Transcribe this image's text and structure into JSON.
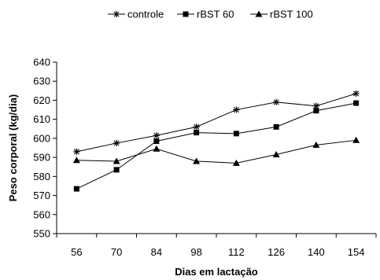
{
  "chart_data": {
    "type": "line",
    "title": "",
    "xlabel": "Dias em lactação",
    "ylabel": "Peso corporal (kg/dia)",
    "x": [
      56,
      70,
      84,
      98,
      112,
      126,
      140,
      154
    ],
    "ylim": [
      550,
      640
    ],
    "ytick_step": 10,
    "grid": false,
    "legend_position": "top",
    "series": [
      {
        "name": "controle",
        "marker": "asterisk",
        "values": [
          593,
          597.5,
          601.5,
          606,
          615,
          619,
          617,
          623.5
        ]
      },
      {
        "name": "rBST 60",
        "marker": "square",
        "values": [
          573.5,
          583.5,
          598.5,
          603,
          602.5,
          606,
          614.5,
          618.5
        ]
      },
      {
        "name": "rBST 100",
        "marker": "triangle",
        "values": [
          588.5,
          588,
          594.5,
          588,
          587,
          591.5,
          596.5,
          599
        ]
      }
    ]
  }
}
